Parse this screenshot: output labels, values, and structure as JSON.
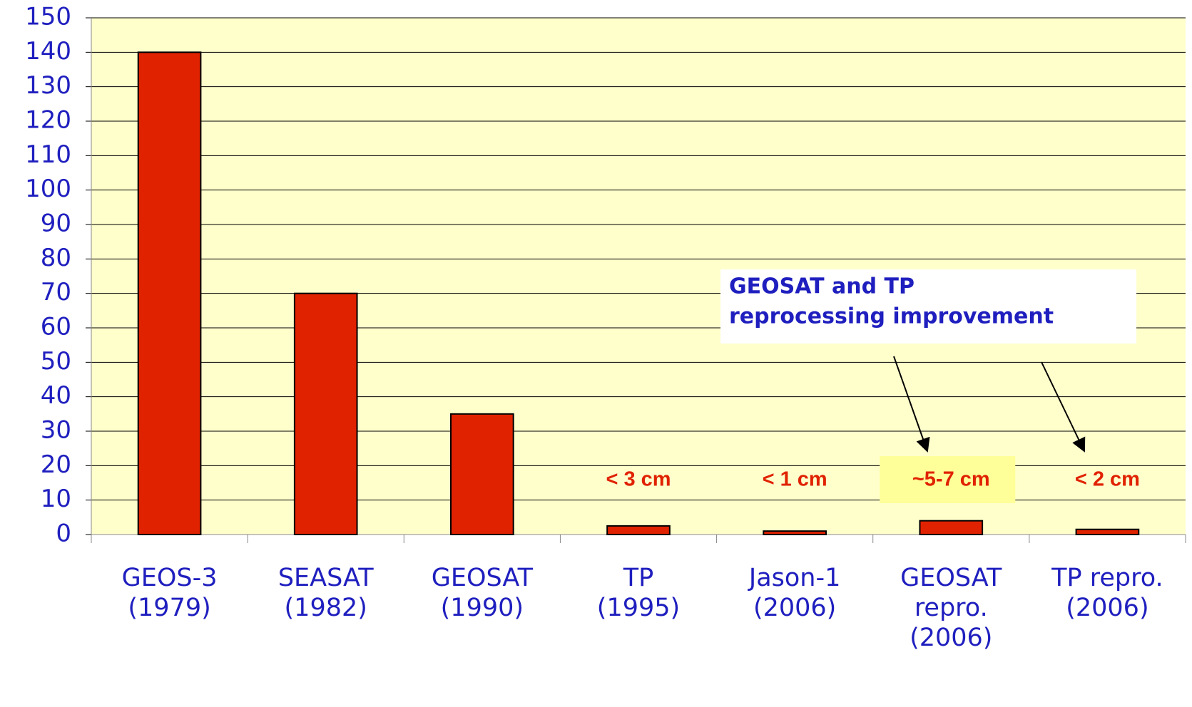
{
  "chart_data": {
    "type": "bar",
    "categories": [
      "GEOS-3\n(1979)",
      "SEASAT\n(1982)",
      "GEOSAT\n(1990)",
      "TP\n(1995)",
      "Jason-1\n(2006)",
      "GEOSAT\nrepro.\n(2006)",
      "TP repro.\n(2006)"
    ],
    "values": [
      140,
      70,
      35,
      2.5,
      1,
      4,
      1.5
    ],
    "color": "#e02200",
    "ylim": [
      0,
      150
    ],
    "yticks": [
      0,
      10,
      20,
      30,
      40,
      50,
      60,
      70,
      80,
      90,
      100,
      110,
      120,
      130,
      140,
      150
    ],
    "grid": true,
    "bar_notes": [
      null,
      null,
      null,
      "< 3 cm",
      "< 1 cm",
      "~5-7 cm",
      "< 2 cm"
    ],
    "callout": [
      "GEOSAT and TP",
      "reprocessing improvement"
    ]
  }
}
